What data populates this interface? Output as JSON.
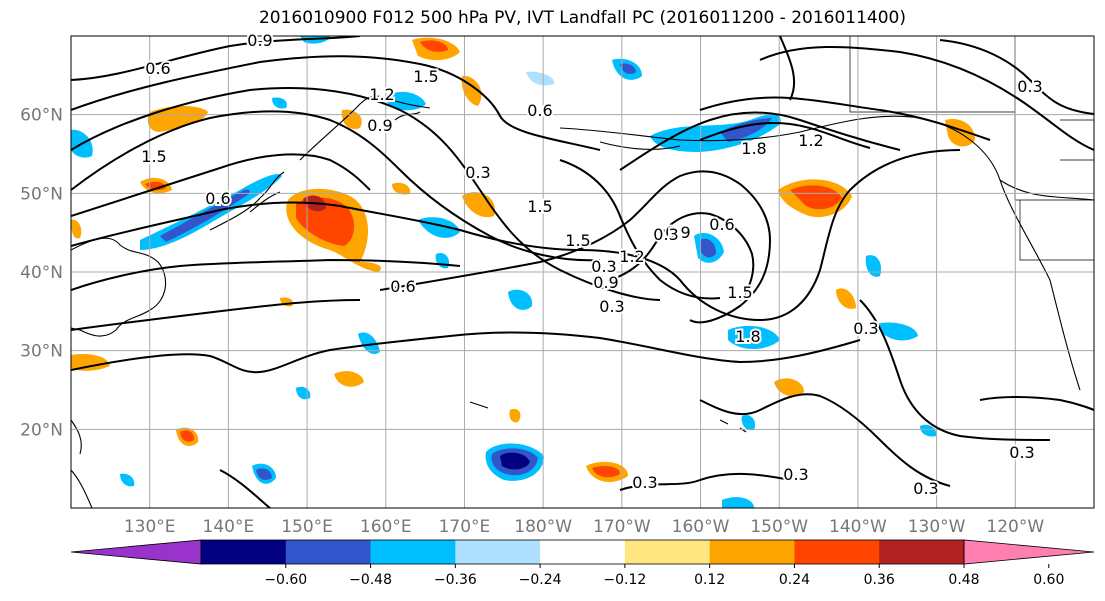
{
  "title": "2016010900 F012 500 hPa PV, IVT Landfall PC (2016011200 - 2016011400)",
  "lat_labels": [
    "20°N",
    "30°N",
    "40°N",
    "50°N",
    "60°N"
  ],
  "lat_values": [
    20,
    30,
    40,
    50,
    60
  ],
  "lon_labels": [
    "130°E",
    "140°E",
    "150°E",
    "160°E",
    "170°E",
    "180°W",
    "170°W",
    "160°W",
    "150°W",
    "140°W",
    "130°W",
    "120°W"
  ],
  "lon_values": [
    130,
    140,
    150,
    160,
    170,
    180,
    190,
    200,
    210,
    220,
    230,
    240
  ],
  "extent": {
    "lon_min": 120,
    "lon_max": 250,
    "lat_min": 10,
    "lat_max": 70
  },
  "colorbar": {
    "ticks": [
      "−0.60",
      "−0.48",
      "−0.36",
      "−0.24",
      "−0.12",
      "0.12",
      "0.24",
      "0.36",
      "0.48",
      "0.60"
    ],
    "colors": [
      "#9933cc",
      "#000080",
      "#3355cc",
      "#00bfff",
      "#b0e0ff",
      "#ffffff",
      "#ffe680",
      "#ffa500",
      "#ff4500",
      "#b22222",
      "#ff80b0"
    ]
  },
  "contour_labels": [
    "0.9",
    "0.6",
    "1.2",
    "0.9",
    "0.3",
    "1.5",
    "0.6",
    "0.6",
    "1.5",
    "0.9",
    "1.5",
    "1.8",
    "1.2",
    "0.3",
    "1.5",
    "0.3",
    "0.6",
    "1.2",
    "1.5",
    "0.9",
    "1.8",
    "0.3",
    "0.6",
    "1.5",
    "0.3",
    "0.3",
    "0.3",
    "0.3",
    "0.3",
    "0.3"
  ],
  "colors": {
    "land": "#000000",
    "grid": "#aaaaaa",
    "tick_label": "#777777",
    "contour": "#000000"
  }
}
